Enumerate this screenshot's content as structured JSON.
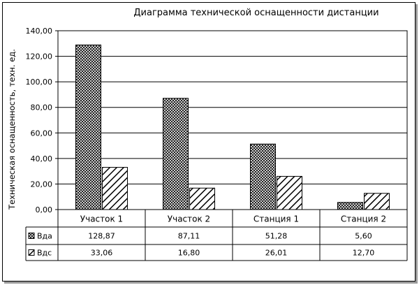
{
  "chart_data": {
    "type": "bar",
    "title": "Диаграмма технической оснащенности дистанции",
    "xlabel": "",
    "ylabel": "Техническая оснащенность, техн. ед.",
    "ylim": [
      0,
      140
    ],
    "yticks": [
      0,
      20,
      40,
      60,
      80,
      100,
      120,
      140
    ],
    "ytick_labels": [
      "0,00",
      "20,00",
      "40,00",
      "60,00",
      "80,00",
      "100,00",
      "120,00",
      "140,00"
    ],
    "categories": [
      "Участок 1",
      "Участок 2",
      "Станция 1",
      "Станция 2"
    ],
    "grid": true,
    "legend": "data-table",
    "series": [
      {
        "name": "Вда",
        "values": [
          128.87,
          87.11,
          51.28,
          5.6
        ],
        "labels": [
          "128,87",
          "87,11",
          "51,28",
          "5,60"
        ],
        "pattern": "crosshatch"
      },
      {
        "name": "Вдс",
        "values": [
          33.06,
          16.8,
          26.01,
          12.7
        ],
        "labels": [
          "33,06",
          "16,80",
          "26,01",
          "12,70"
        ],
        "pattern": "diagonal"
      }
    ]
  }
}
